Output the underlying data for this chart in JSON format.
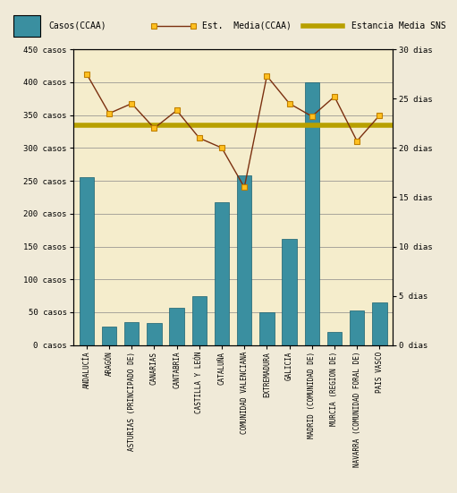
{
  "categories": [
    "ANDALUCÍA",
    "ARAGÓN",
    "ASTURIAS (PRINCIPADO DE)",
    "CANARIAS",
    "CANTABRIA",
    "CASTILLA Y LEÓN",
    "CATALUÑA",
    "COMUNIDAD VALENCIANA",
    "EXTREMADURA",
    "GALICIA",
    "MADRID (COMUNIDAD DE)",
    "MURCIA (REGION DE)",
    "NAVARRA (COMUNIDAD FORAL DE)",
    "PAIS VASCO"
  ],
  "casos": [
    255,
    28,
    35,
    33,
    57,
    75,
    217,
    258,
    50,
    162,
    400,
    20,
    53,
    65
  ],
  "estancia_media_ccaa": [
    27.5,
    23.5,
    24.5,
    22.0,
    23.8,
    21.0,
    20.0,
    16.0,
    27.3,
    24.5,
    23.2,
    25.2,
    20.7,
    23.3
  ],
  "estancia_media_sns": 22.3,
  "bar_color": "#3a8fa0",
  "line_color": "#7b3010",
  "marker_facecolor": "#ffc020",
  "marker_edgecolor": "#c08000",
  "sns_line_color": "#b8a000",
  "plot_bg_color": "#f5edcc",
  "outer_bg_color": "#f0ead8",
  "left_ylim": [
    0,
    450
  ],
  "right_ylim": [
    0,
    30
  ],
  "left_yticks": [
    0,
    50,
    100,
    150,
    200,
    250,
    300,
    350,
    400,
    450
  ],
  "left_yticklabels": [
    "0 casos",
    "50 casos",
    "100 casos",
    "150 casos",
    "200 casos",
    "250 casos",
    "300 casos",
    "350 casos",
    "400 casos",
    "450 casos"
  ],
  "right_yticks": [
    0,
    5,
    10,
    15,
    20,
    25,
    30
  ],
  "right_yticklabels": [
    "0 dias",
    "5 dias",
    "10 dias",
    "15 dias",
    "20 dias",
    "25 dias",
    "30 dias"
  ],
  "legend_casos": "Casos(CCAA)",
  "legend_est_media": "Est.  Media(CCAA)",
  "legend_sns": "Estancia Media SNS"
}
